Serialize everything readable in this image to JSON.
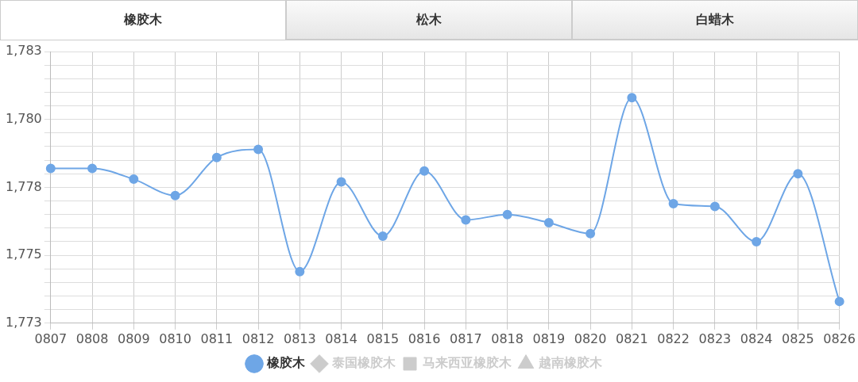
{
  "chart_data": {
    "type": "line",
    "annotations": [
      "橡胶木",
      "松木",
      "白蜡木"
    ],
    "categories": [
      "0807",
      "0808",
      "0809",
      "0810",
      "0811",
      "0812",
      "0813",
      "0814",
      "0815",
      "0816",
      "0817",
      "0818",
      "0819",
      "0820",
      "0821",
      "0822",
      "0823",
      "0824",
      "0825",
      "0826"
    ],
    "series": [
      {
        "name": "橡胶木",
        "color": "#6ea6e6",
        "marker": "circle",
        "values": [
          1778.7,
          1778.7,
          1778.3,
          1777.7,
          1779.1,
          1779.4,
          1774.9,
          1778.2,
          1776.2,
          1778.6,
          1776.8,
          1777.0,
          1776.7,
          1776.3,
          1781.3,
          1777.4,
          1777.3,
          1776.0,
          1778.5,
          1773.8
        ]
      },
      {
        "name": "泰国橡胶木",
        "color": "#cccccc",
        "marker": "diamond",
        "values": [
          null,
          null,
          null,
          null,
          null,
          null,
          null,
          null,
          null,
          null,
          null,
          null,
          null,
          null,
          null,
          null,
          null,
          null,
          null,
          null
        ]
      },
      {
        "name": "马来西亚橡胶木",
        "color": "#cccccc",
        "marker": "square",
        "values": [
          null,
          null,
          null,
          null,
          null,
          null,
          null,
          null,
          null,
          null,
          null,
          null,
          null,
          null,
          null,
          null,
          null,
          null,
          null,
          null
        ]
      },
      {
        "name": "越南橡胶木",
        "color": "#cccccc",
        "marker": "triangle",
        "values": [
          null,
          null,
          null,
          null,
          null,
          null,
          null,
          null,
          null,
          null,
          null,
          null,
          null,
          null,
          null,
          null,
          null,
          null,
          null,
          null
        ]
      }
    ],
    "ylim": [
      1773,
      1783
    ],
    "yticks": [
      {
        "value": 1773,
        "label": "1,773"
      },
      {
        "value": 1773.5,
        "label": null
      },
      {
        "value": 1774,
        "label": null
      },
      {
        "value": 1774.5,
        "label": null
      },
      {
        "value": 1775,
        "label": null
      },
      {
        "value": 1775.5,
        "label": "1,775"
      },
      {
        "value": 1776,
        "label": null
      },
      {
        "value": 1776.5,
        "label": null
      },
      {
        "value": 1777,
        "label": null
      },
      {
        "value": 1777.5,
        "label": null
      },
      {
        "value": 1778,
        "label": "1,778"
      },
      {
        "value": 1778.5,
        "label": null
      },
      {
        "value": 1779,
        "label": null
      },
      {
        "value": 1779.5,
        "label": null
      },
      {
        "value": 1780,
        "label": null
      },
      {
        "value": 1780.5,
        "label": "1,780"
      },
      {
        "value": 1781,
        "label": null
      },
      {
        "value": 1781.5,
        "label": null
      },
      {
        "value": 1782,
        "label": null
      },
      {
        "value": 1782.5,
        "label": null
      },
      {
        "value": 1783,
        "label": "1,783"
      }
    ],
    "grid": true,
    "legend": "bottom"
  }
}
